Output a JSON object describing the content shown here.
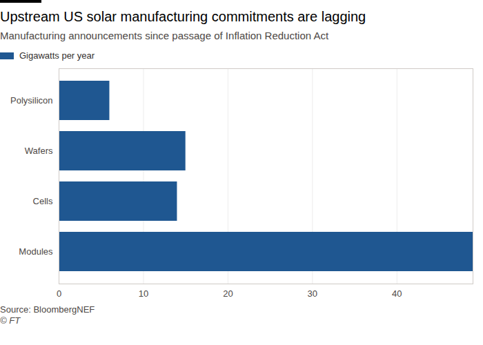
{
  "chart_data": {
    "type": "bar",
    "title": "Upstream US solar manufacturing commitments are lagging",
    "subtitle": "Manufacturing announcements since passage of Inflation Reduction Act",
    "orientation": "horizontal",
    "categories": [
      "Polysilicon",
      "Wafers",
      "Cells",
      "Modules"
    ],
    "series": [
      {
        "name": "Gigawatts per year",
        "color": "#1f5791",
        "values": [
          6,
          15,
          14,
          49
        ]
      }
    ],
    "xlim": [
      0,
      49
    ],
    "xticks": [
      0,
      10,
      20,
      30,
      40
    ],
    "grid": true,
    "legend": "top-left",
    "annotations": [
      "Source: BloombergNEF",
      "© FT"
    ]
  }
}
